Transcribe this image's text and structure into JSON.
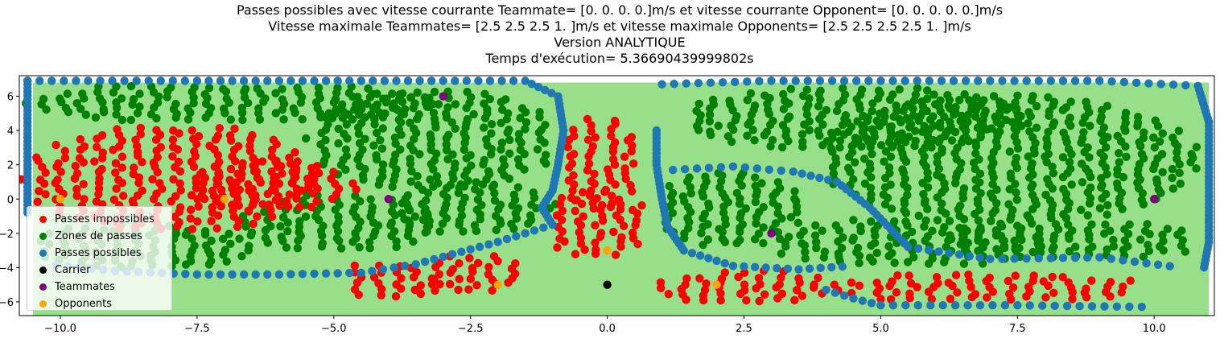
{
  "chart_data": {
    "type": "scatter",
    "title_lines": [
      "Passes possibles avec vitesse courrante Teammate= [0. 0. 0. 0.]m/s et vitesse courrante Opponent= [0. 0. 0. 0. 0.]m/s",
      "Vitesse maximale Teammates= [2.5 2.5 2.5 1. ]m/s et vitesse maximale Opponents= [2.5 2.5 2.5 2.5 1. ]m/s",
      "Version ANALYTIQUE",
      "Temps d'exécution= 5.36690439999802s"
    ],
    "xlabel": "",
    "ylabel": "",
    "xlim": [
      -10.75,
      11.1
    ],
    "ylim": [
      -6.8,
      7.2
    ],
    "x_ticks": [
      -10.0,
      -7.5,
      -5.0,
      -2.5,
      0.0,
      2.5,
      5.0,
      7.5,
      10.0
    ],
    "x_tick_labels": [
      "−10.0",
      "−7.5",
      "−5.0",
      "−2.5",
      "0.0",
      "2.5",
      "5.0",
      "7.5",
      "10.0"
    ],
    "y_ticks": [
      6,
      4,
      2,
      0,
      -2,
      -4,
      -6
    ],
    "y_tick_labels": [
      "6",
      "4",
      "2",
      "0",
      "−2",
      "−4",
      "−6"
    ],
    "grid": false,
    "field": {
      "x": [
        -10.5,
        11.0
      ],
      "y": [
        -6.8,
        6.8
      ],
      "color": "#98df8a"
    },
    "legend_position": "lower left",
    "legend": [
      {
        "label": "Passes impossibles",
        "color": "#ff0000"
      },
      {
        "label": "Zones de passes",
        "color": "#008000"
      },
      {
        "label": "Passes possibles",
        "color": "#1f77b4"
      },
      {
        "label": "Carrier",
        "color": "#000000"
      },
      {
        "label": "Teammates",
        "color": "#800080"
      },
      {
        "label": "Opponents",
        "color": "#ffa500"
      }
    ],
    "series": [
      {
        "name": "Carrier",
        "color": "#000000",
        "points": [
          [
            0.0,
            -5.0
          ]
        ]
      },
      {
        "name": "Teammates",
        "color": "#800080",
        "points": [
          [
            -3.0,
            6.0
          ],
          [
            -4.0,
            0.0
          ],
          [
            3.0,
            -2.0
          ],
          [
            10.0,
            0.0
          ]
        ]
      },
      {
        "name": "Opponents",
        "color": "#ffa500",
        "points": [
          [
            -10.0,
            0.0
          ],
          [
            -7.0,
            0.0
          ],
          [
            -2.0,
            -5.0
          ],
          [
            0.0,
            -3.0
          ],
          [
            2.0,
            -5.0
          ]
        ]
      }
    ],
    "regions": {
      "Passes impossibles": [
        {
          "cx": -8.0,
          "cy": 1.2,
          "rx": 2.7,
          "ry": 3.2
        },
        {
          "cx": -6.2,
          "cy": 0.8,
          "rx": 1.6,
          "ry": 1.5
        },
        {
          "cx": -0.2,
          "cy": 2.0,
          "rx": 0.8,
          "ry": 2.8
        },
        {
          "cx": -0.2,
          "cy": -1.5,
          "rx": 1.0,
          "ry": 2.0
        },
        {
          "cx": 2.5,
          "cy": -5.2,
          "rx": 1.8,
          "ry": 1.0
        },
        {
          "cx": -4.0,
          "cy": -4.8,
          "rx": 0.9,
          "ry": 1.1
        },
        {
          "cx": -2.5,
          "cy": -4.4,
          "rx": 1.0,
          "ry": 1.2
        },
        {
          "cx": 7.0,
          "cy": -5.2,
          "rx": 2.8,
          "ry": 0.9
        }
      ],
      "Zones de passes": [
        {
          "cx": -6.8,
          "cy": 5.6,
          "rx": 3.8,
          "ry": 1.2
        },
        {
          "cx": -3.2,
          "cy": 3.5,
          "rx": 2.3,
          "ry": 3.0
        },
        {
          "cx": -5.0,
          "cy": -1.4,
          "rx": 1.9,
          "ry": 1.7
        },
        {
          "cx": -8.5,
          "cy": -2.8,
          "rx": 2.1,
          "ry": 1.4
        },
        {
          "cx": -2.5,
          "cy": -0.5,
          "rx": 1.5,
          "ry": 1.6
        },
        {
          "cx": 4.5,
          "cy": 4.7,
          "rx": 3.2,
          "ry": 1.9
        },
        {
          "cx": 7.3,
          "cy": 2.3,
          "rx": 3.5,
          "ry": 3.8
        },
        {
          "cx": 2.2,
          "cy": -0.6,
          "rx": 1.4,
          "ry": 2.3
        },
        {
          "cx": 5.5,
          "cy": -2.6,
          "rx": 2.6,
          "ry": 1.4
        },
        {
          "cx": 8.5,
          "cy": -2.4,
          "rx": 2.3,
          "ry": 1.2
        }
      ],
      "Passes possibles": [
        {
          "points": [
            [
              -10.6,
              6.9
            ],
            [
              -7.5,
              6.9
            ],
            [
              -4.5,
              6.9
            ],
            [
              -1.5,
              6.9
            ],
            [
              -0.9,
              6.0
            ],
            [
              -0.8,
              4.0
            ],
            [
              -0.9,
              2.0
            ],
            [
              -1.0,
              0.5
            ],
            [
              -1.2,
              -0.5
            ],
            [
              -1.0,
              -1.5
            ],
            [
              -2.0,
              -2.5
            ],
            [
              -3.5,
              -3.8
            ],
            [
              -4.5,
              -4.3
            ],
            [
              -6.0,
              -4.4
            ],
            [
              -7.5,
              -4.4
            ],
            [
              -9.0,
              -4.2
            ],
            [
              -10.3,
              -3.8
            ]
          ]
        },
        {
          "points": [
            [
              -10.6,
              6.9
            ],
            [
              -10.6,
              4.5
            ],
            [
              -10.6,
              2.0
            ],
            [
              -10.6,
              -1.0
            ]
          ]
        },
        {
          "points": [
            [
              0.9,
              4.0
            ],
            [
              0.9,
              2.0
            ],
            [
              1.0,
              0.0
            ],
            [
              1.1,
              -1.6
            ],
            [
              1.4,
              -3.0
            ],
            [
              2.3,
              -3.9
            ],
            [
              3.5,
              -4.1
            ],
            [
              4.5,
              -3.9
            ]
          ]
        },
        {
          "points": [
            [
              1.2,
              1.7
            ],
            [
              2.3,
              1.9
            ],
            [
              3.4,
              1.6
            ],
            [
              4.2,
              1.0
            ],
            [
              4.8,
              -0.5
            ],
            [
              5.5,
              -2.8
            ],
            [
              7.0,
              -3.5
            ],
            [
              9.0,
              -3.4
            ],
            [
              10.5,
              -4.0
            ]
          ]
        },
        {
          "points": [
            [
              1.0,
              6.7
            ],
            [
              3.0,
              6.9
            ],
            [
              5.0,
              6.9
            ],
            [
              7.0,
              6.9
            ],
            [
              9.0,
              6.9
            ],
            [
              10.8,
              6.6
            ],
            [
              11.0,
              4.5
            ],
            [
              11.0,
              2.0
            ],
            [
              11.0,
              -0.5
            ],
            [
              11.0,
              -2.5
            ],
            [
              10.9,
              -4.2
            ]
          ]
        },
        {
          "points": [
            [
              4.0,
              -5.3
            ],
            [
              4.5,
              -5.8
            ],
            [
              5.0,
              -6.2
            ],
            [
              7.5,
              -6.2
            ],
            [
              10.0,
              -6.3
            ]
          ]
        }
      ]
    }
  }
}
